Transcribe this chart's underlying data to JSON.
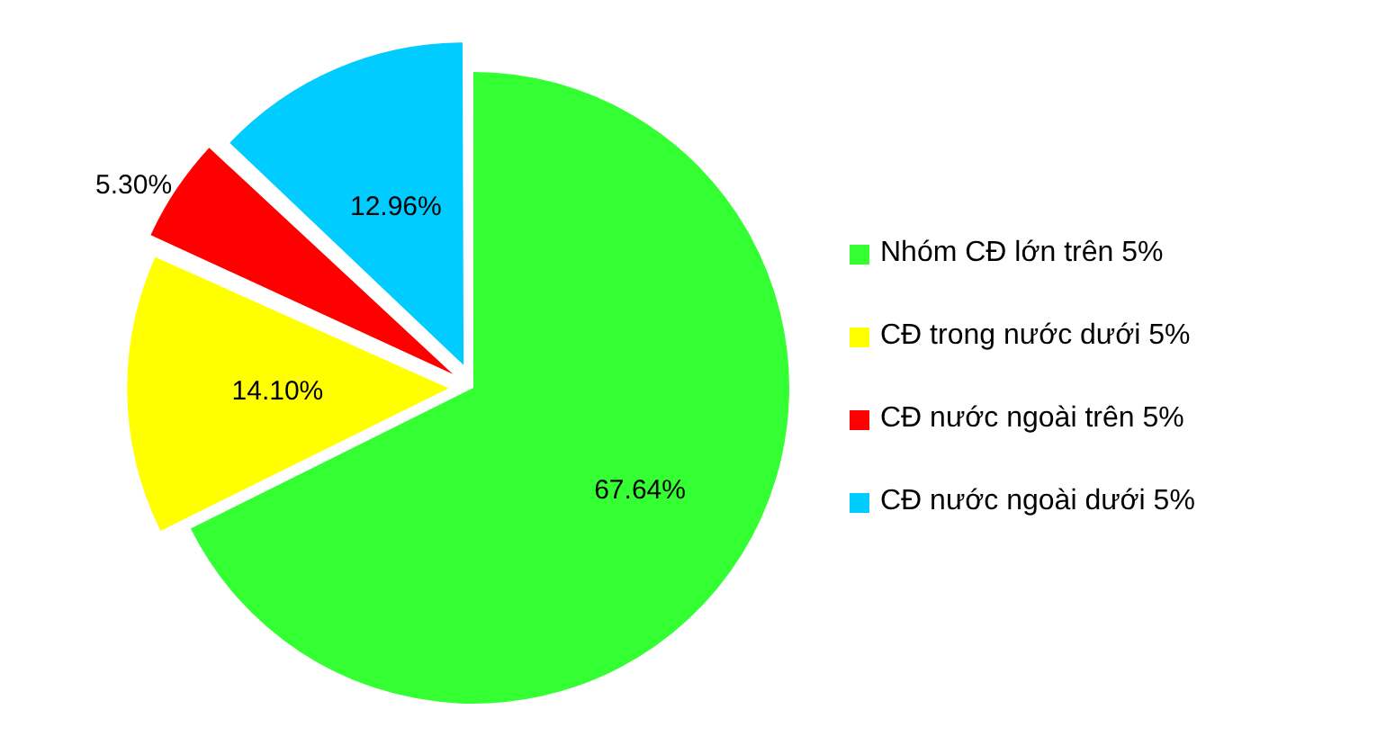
{
  "chart_data": {
    "type": "pie",
    "categories": [
      "Nhóm CĐ lớn trên 5%",
      "CĐ trong nước dưới 5%",
      "CĐ nước ngoài trên 5%",
      "CĐ nước ngoài dưới 5%"
    ],
    "values": [
      67.64,
      14.1,
      5.3,
      12.96
    ],
    "value_labels": [
      "67.64%",
      "14.10%",
      "5.30%",
      "12.96%"
    ],
    "colors": [
      "#33ff33",
      "#ffff00",
      "#ff0000",
      "#00ccff"
    ],
    "legend": "right"
  }
}
